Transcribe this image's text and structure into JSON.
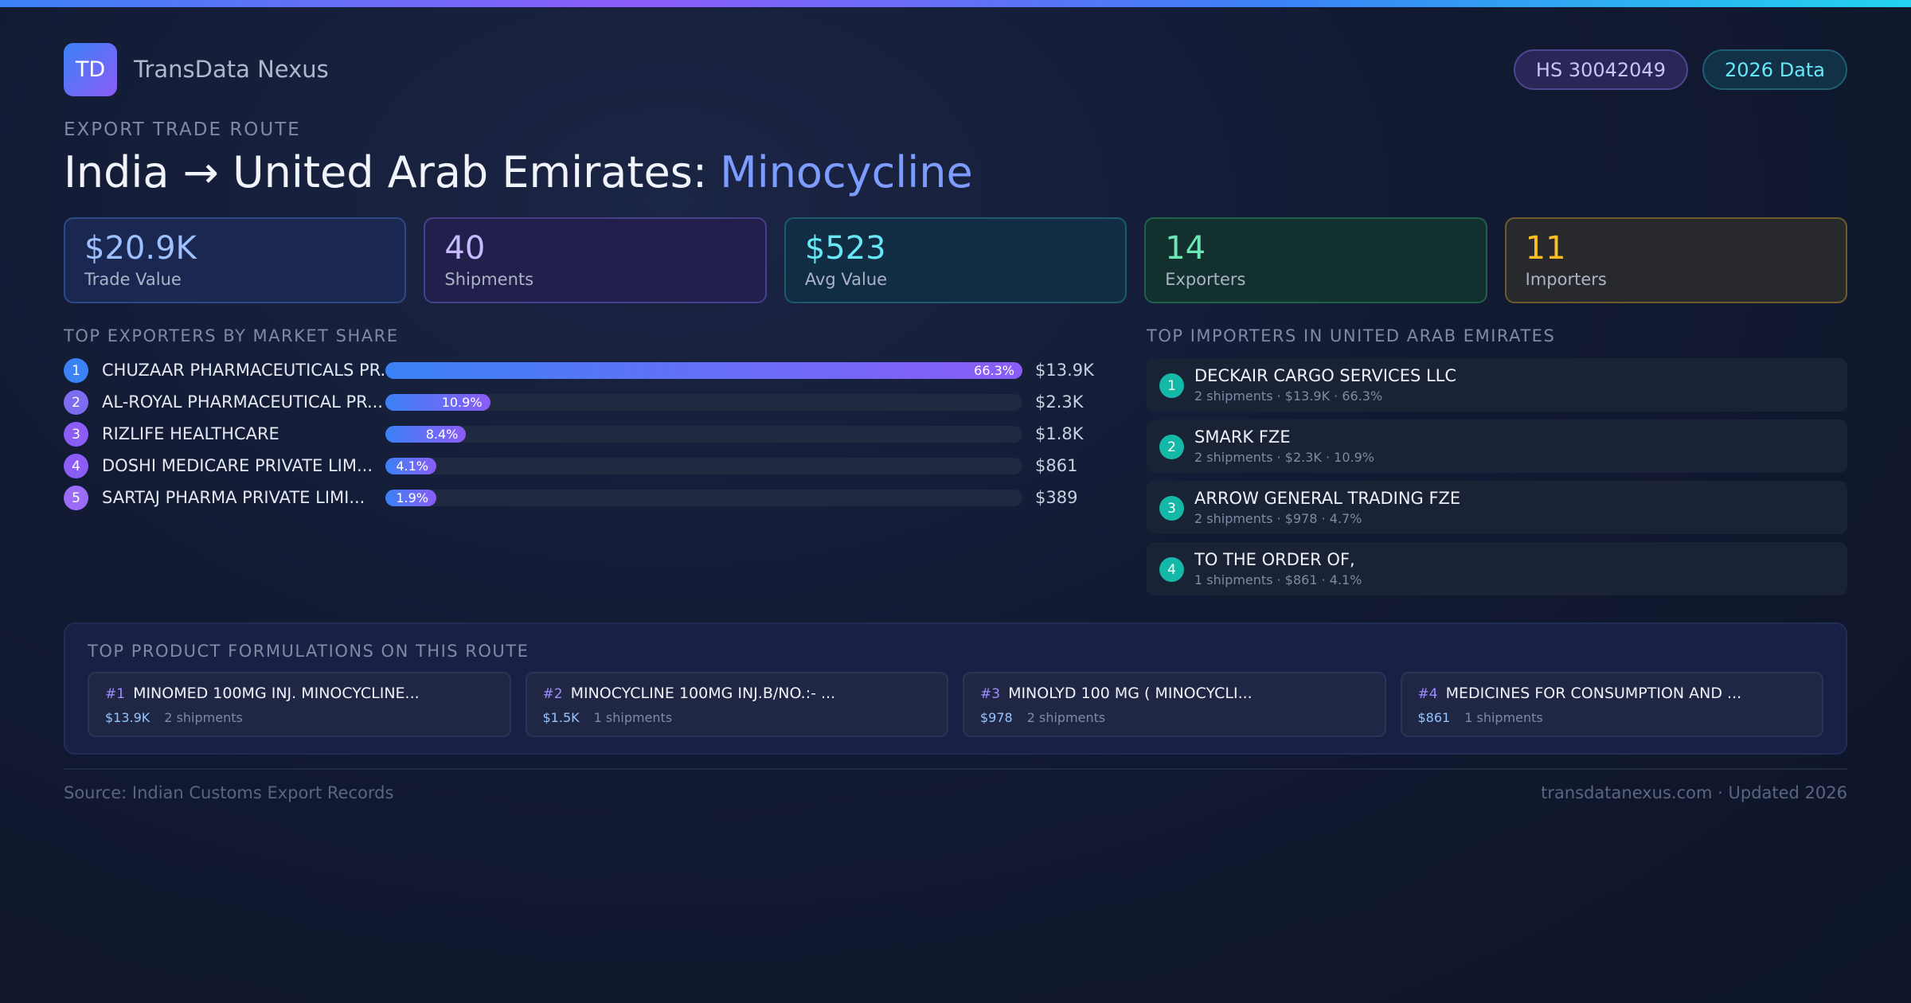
{
  "header": {
    "logo": "TD",
    "brand": "TransData Nexus",
    "badges": [
      "HS 30042049",
      "2026 Data"
    ]
  },
  "route": {
    "eyebrow": "EXPORT TRADE ROUTE",
    "title": "India → United Arab Emirates:",
    "highlight": "Minocycline"
  },
  "kpis": [
    {
      "value": "$20.9K",
      "label": "Trade Value"
    },
    {
      "value": "40",
      "label": "Shipments"
    },
    {
      "value": "$523",
      "label": "Avg Value"
    },
    {
      "value": "14",
      "label": "Exporters"
    },
    {
      "value": "11",
      "label": "Importers"
    }
  ],
  "exporters": {
    "heading": "TOP EXPORTERS BY MARKET SHARE",
    "rows": [
      {
        "rank": 1,
        "name": "CHUZAAR PHARMACEUTICALS PR...",
        "share": 66.3,
        "share_label": "66.3%",
        "value": "$13.9K"
      },
      {
        "rank": 2,
        "name": "AL-ROYAL PHARMACEUTICAL PR...",
        "share": 10.9,
        "share_label": "10.9%",
        "value": "$2.3K"
      },
      {
        "rank": 3,
        "name": "RIZLIFE HEALTHCARE",
        "share": 8.4,
        "share_label": "8.4%",
        "value": "$1.8K"
      },
      {
        "rank": 4,
        "name": "DOSHI MEDICARE PRIVATE LIM...",
        "share": 4.1,
        "share_label": "4.1%",
        "value": "$861"
      },
      {
        "rank": 5,
        "name": "SARTAJ PHARMA PRIVATE LIMI...",
        "share": 1.9,
        "share_label": "1.9%",
        "value": "$389"
      }
    ]
  },
  "importers": {
    "heading": "TOP IMPORTERS IN UNITED ARAB EMIRATES",
    "rows": [
      {
        "rank": 1,
        "name": "DECKAIR CARGO SERVICES LLC",
        "detail": "2 shipments · $13.9K · 66.3%"
      },
      {
        "rank": 2,
        "name": "SMARK FZE",
        "detail": "2 shipments · $2.3K · 10.9%"
      },
      {
        "rank": 3,
        "name": "ARROW GENERAL TRADING FZE",
        "detail": "2 shipments · $978 · 4.7%"
      },
      {
        "rank": 4,
        "name": "TO THE ORDER OF,",
        "detail": "1 shipments · $861 · 4.1%"
      }
    ]
  },
  "formulations": {
    "heading": "TOP PRODUCT FORMULATIONS ON THIS ROUTE",
    "items": [
      {
        "rank": "#1",
        "name": "MINOMED 100MG INJ. MINOCYCLINE...",
        "value": "$13.9K",
        "shipments": "2 shipments"
      },
      {
        "rank": "#2",
        "name": "MINOCYCLINE 100MG INJ.B/NO.:- ...",
        "value": "$1.5K",
        "shipments": "1 shipments"
      },
      {
        "rank": "#3",
        "name": "MINOLYD 100 MG ( MINOCYCLI...",
        "value": "$978",
        "shipments": "2 shipments"
      },
      {
        "rank": "#4",
        "name": "MEDICINES FOR CONSUMPTION AND ...",
        "value": "$861",
        "shipments": "1 shipments"
      }
    ]
  },
  "footer": {
    "source": "Source: Indian Customs Export Records",
    "site": "transdatanexus.com · Updated 2026"
  }
}
